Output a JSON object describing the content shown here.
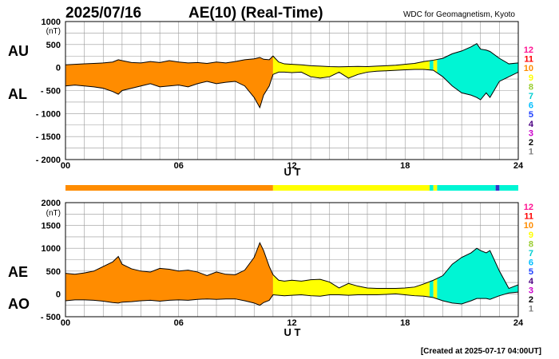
{
  "header": {
    "date": "2025/07/16",
    "title": "AE(10) (Real-Time)",
    "source": "WDC for Geomagnetism, Kyoto"
  },
  "footer": {
    "created": "[Created at 2025-07-17 04:00UT]"
  },
  "colors": {
    "orange": "#FF8C00",
    "yellow": "#FFFF00",
    "cyan": "#00F5D4",
    "blue": "#3333CC",
    "legend": [
      "#FF1493",
      "#FF0000",
      "#FF8C00",
      "#FFFF00",
      "#9ACD32",
      "#00CED1",
      "#00BFFF",
      "#1E40FF",
      "#4B0082",
      "#CC00CC",
      "#000000",
      "#808080",
      "#C0C0C0"
    ]
  },
  "legend_labels": [
    "12",
    "11",
    "10",
    "9",
    "8",
    "7",
    "6",
    "5",
    "4",
    "3",
    "2",
    "1"
  ],
  "chart_data": [
    {
      "id": "top",
      "type": "area",
      "series_labels": [
        "AU",
        "AL"
      ],
      "ylabel_unit": "(nT)",
      "ylim": [
        -2000,
        1000
      ],
      "yticks": [
        "1000",
        "500",
        "0",
        "- 500",
        "- 1000",
        "- 1500",
        "- 2000"
      ],
      "ytick_values": [
        1000,
        500,
        0,
        -500,
        -1000,
        -1500,
        -2000
      ],
      "xlim": [
        0,
        24
      ],
      "xticks": [
        "00",
        "06",
        "12",
        "18",
        "24"
      ],
      "xtick_values": [
        0,
        6,
        12,
        18,
        24
      ],
      "xlabel": "U T",
      "grid": true,
      "x": [
        0,
        0.5,
        1,
        1.5,
        2,
        2.5,
        2.8,
        3,
        3.5,
        4,
        4.5,
        5,
        5.5,
        6,
        6.5,
        7,
        7.5,
        8,
        8.5,
        9,
        9.5,
        10,
        10.3,
        10.5,
        10.8,
        11,
        11.3,
        11.6,
        12,
        12.5,
        13,
        13.5,
        14,
        14.5,
        15,
        15.5,
        16,
        16.5,
        17,
        17.5,
        18,
        18.5,
        19,
        19.5,
        20,
        20.5,
        21,
        21.5,
        21.8,
        22,
        22.3,
        22.5,
        23,
        23.5,
        24
      ],
      "upper": [
        60,
        70,
        80,
        90,
        100,
        120,
        170,
        150,
        110,
        100,
        130,
        110,
        150,
        120,
        100,
        110,
        90,
        120,
        100,
        130,
        170,
        190,
        220,
        180,
        170,
        250,
        120,
        80,
        70,
        60,
        40,
        30,
        20,
        15,
        20,
        25,
        20,
        30,
        40,
        50,
        70,
        90,
        130,
        160,
        200,
        300,
        360,
        450,
        520,
        400,
        380,
        350,
        200,
        80,
        100
      ],
      "lower": [
        -400,
        -380,
        -400,
        -420,
        -450,
        -520,
        -580,
        -500,
        -450,
        -400,
        -350,
        -420,
        -400,
        -380,
        -420,
        -350,
        -300,
        -350,
        -320,
        -300,
        -400,
        -650,
        -870,
        -600,
        -400,
        -150,
        -100,
        -100,
        -110,
        -100,
        -200,
        -230,
        -200,
        -100,
        -230,
        -150,
        -100,
        -80,
        -70,
        -60,
        -50,
        -40,
        -40,
        -60,
        -200,
        -400,
        -550,
        -600,
        -650,
        -700,
        -550,
        -650,
        -300,
        -200,
        -100
      ],
      "color_segments": [
        {
          "from": 0,
          "to": 11.0,
          "color": "orange"
        },
        {
          "from": 11.0,
          "to": 19.3,
          "color": "yellow"
        },
        {
          "from": 19.3,
          "to": 19.5,
          "color": "cyan"
        },
        {
          "from": 19.5,
          "to": 19.7,
          "color": "yellow"
        },
        {
          "from": 19.7,
          "to": 24,
          "color": "cyan"
        }
      ]
    },
    {
      "id": "bottom",
      "type": "area",
      "series_labels": [
        "AE",
        "AO"
      ],
      "ylabel_unit": "(nT)",
      "ylim": [
        -500,
        2000
      ],
      "yticks": [
        "2000",
        "1500",
        "1000",
        "500",
        "0",
        "- 500"
      ],
      "ytick_values": [
        2000,
        1500,
        1000,
        500,
        0,
        -500
      ],
      "xlim": [
        0,
        24
      ],
      "xticks": [
        "00",
        "06",
        "12",
        "18",
        "24"
      ],
      "xtick_values": [
        0,
        6,
        12,
        18,
        24
      ],
      "xlabel": "U T",
      "grid": true,
      "x": [
        0,
        0.5,
        1,
        1.5,
        2,
        2.5,
        2.8,
        3,
        3.5,
        4,
        4.5,
        5,
        5.5,
        6,
        6.5,
        7,
        7.5,
        8,
        8.5,
        9,
        9.5,
        10,
        10.3,
        10.5,
        10.8,
        11,
        11.3,
        11.6,
        12,
        12.5,
        13,
        13.5,
        14,
        14.5,
        15,
        15.5,
        16,
        16.5,
        17,
        17.5,
        18,
        18.5,
        19,
        19.5,
        20,
        20.5,
        21,
        21.5,
        21.8,
        22,
        22.3,
        22.5,
        23,
        23.5,
        24
      ],
      "upper": [
        450,
        430,
        460,
        500,
        600,
        700,
        820,
        650,
        550,
        500,
        480,
        560,
        540,
        500,
        520,
        480,
        400,
        480,
        430,
        420,
        520,
        800,
        1120,
        950,
        600,
        420,
        300,
        280,
        300,
        280,
        310,
        320,
        260,
        130,
        230,
        170,
        130,
        120,
        120,
        120,
        130,
        150,
        220,
        300,
        400,
        650,
        800,
        900,
        1000,
        950,
        900,
        950,
        500,
        120,
        200
      ],
      "lower": [
        -150,
        -130,
        -130,
        -140,
        -160,
        -190,
        -200,
        -180,
        -170,
        -150,
        -140,
        -160,
        -140,
        -130,
        -140,
        -120,
        -110,
        -120,
        -110,
        -110,
        -150,
        -200,
        -250,
        -190,
        -140,
        -20,
        -30,
        -40,
        -30,
        -20,
        -40,
        -50,
        -20,
        -20,
        -30,
        -20,
        -20,
        -20,
        -10,
        0,
        -20,
        -40,
        -50,
        -80,
        -150,
        -200,
        -220,
        -150,
        -100,
        -100,
        -100,
        -120,
        -40,
        20,
        40
      ],
      "color_segments": [
        {
          "from": 0,
          "to": 11.0,
          "color": "orange"
        },
        {
          "from": 11.0,
          "to": 19.3,
          "color": "yellow"
        },
        {
          "from": 19.3,
          "to": 19.5,
          "color": "cyan"
        },
        {
          "from": 19.5,
          "to": 19.7,
          "color": "yellow"
        },
        {
          "from": 19.7,
          "to": 24,
          "color": "cyan"
        }
      ]
    },
    {
      "id": "color-bar",
      "type": "bar",
      "xlim": [
        0,
        24
      ],
      "segments": [
        {
          "from": 0,
          "to": 11.0,
          "color": "orange"
        },
        {
          "from": 11.0,
          "to": 19.3,
          "color": "yellow"
        },
        {
          "from": 19.3,
          "to": 19.5,
          "color": "cyan"
        },
        {
          "from": 19.5,
          "to": 19.7,
          "color": "yellow"
        },
        {
          "from": 19.7,
          "to": 22.8,
          "color": "cyan"
        },
        {
          "from": 22.8,
          "to": 23.0,
          "color": "blue"
        },
        {
          "from": 23.0,
          "to": 24,
          "color": "cyan"
        }
      ]
    }
  ]
}
